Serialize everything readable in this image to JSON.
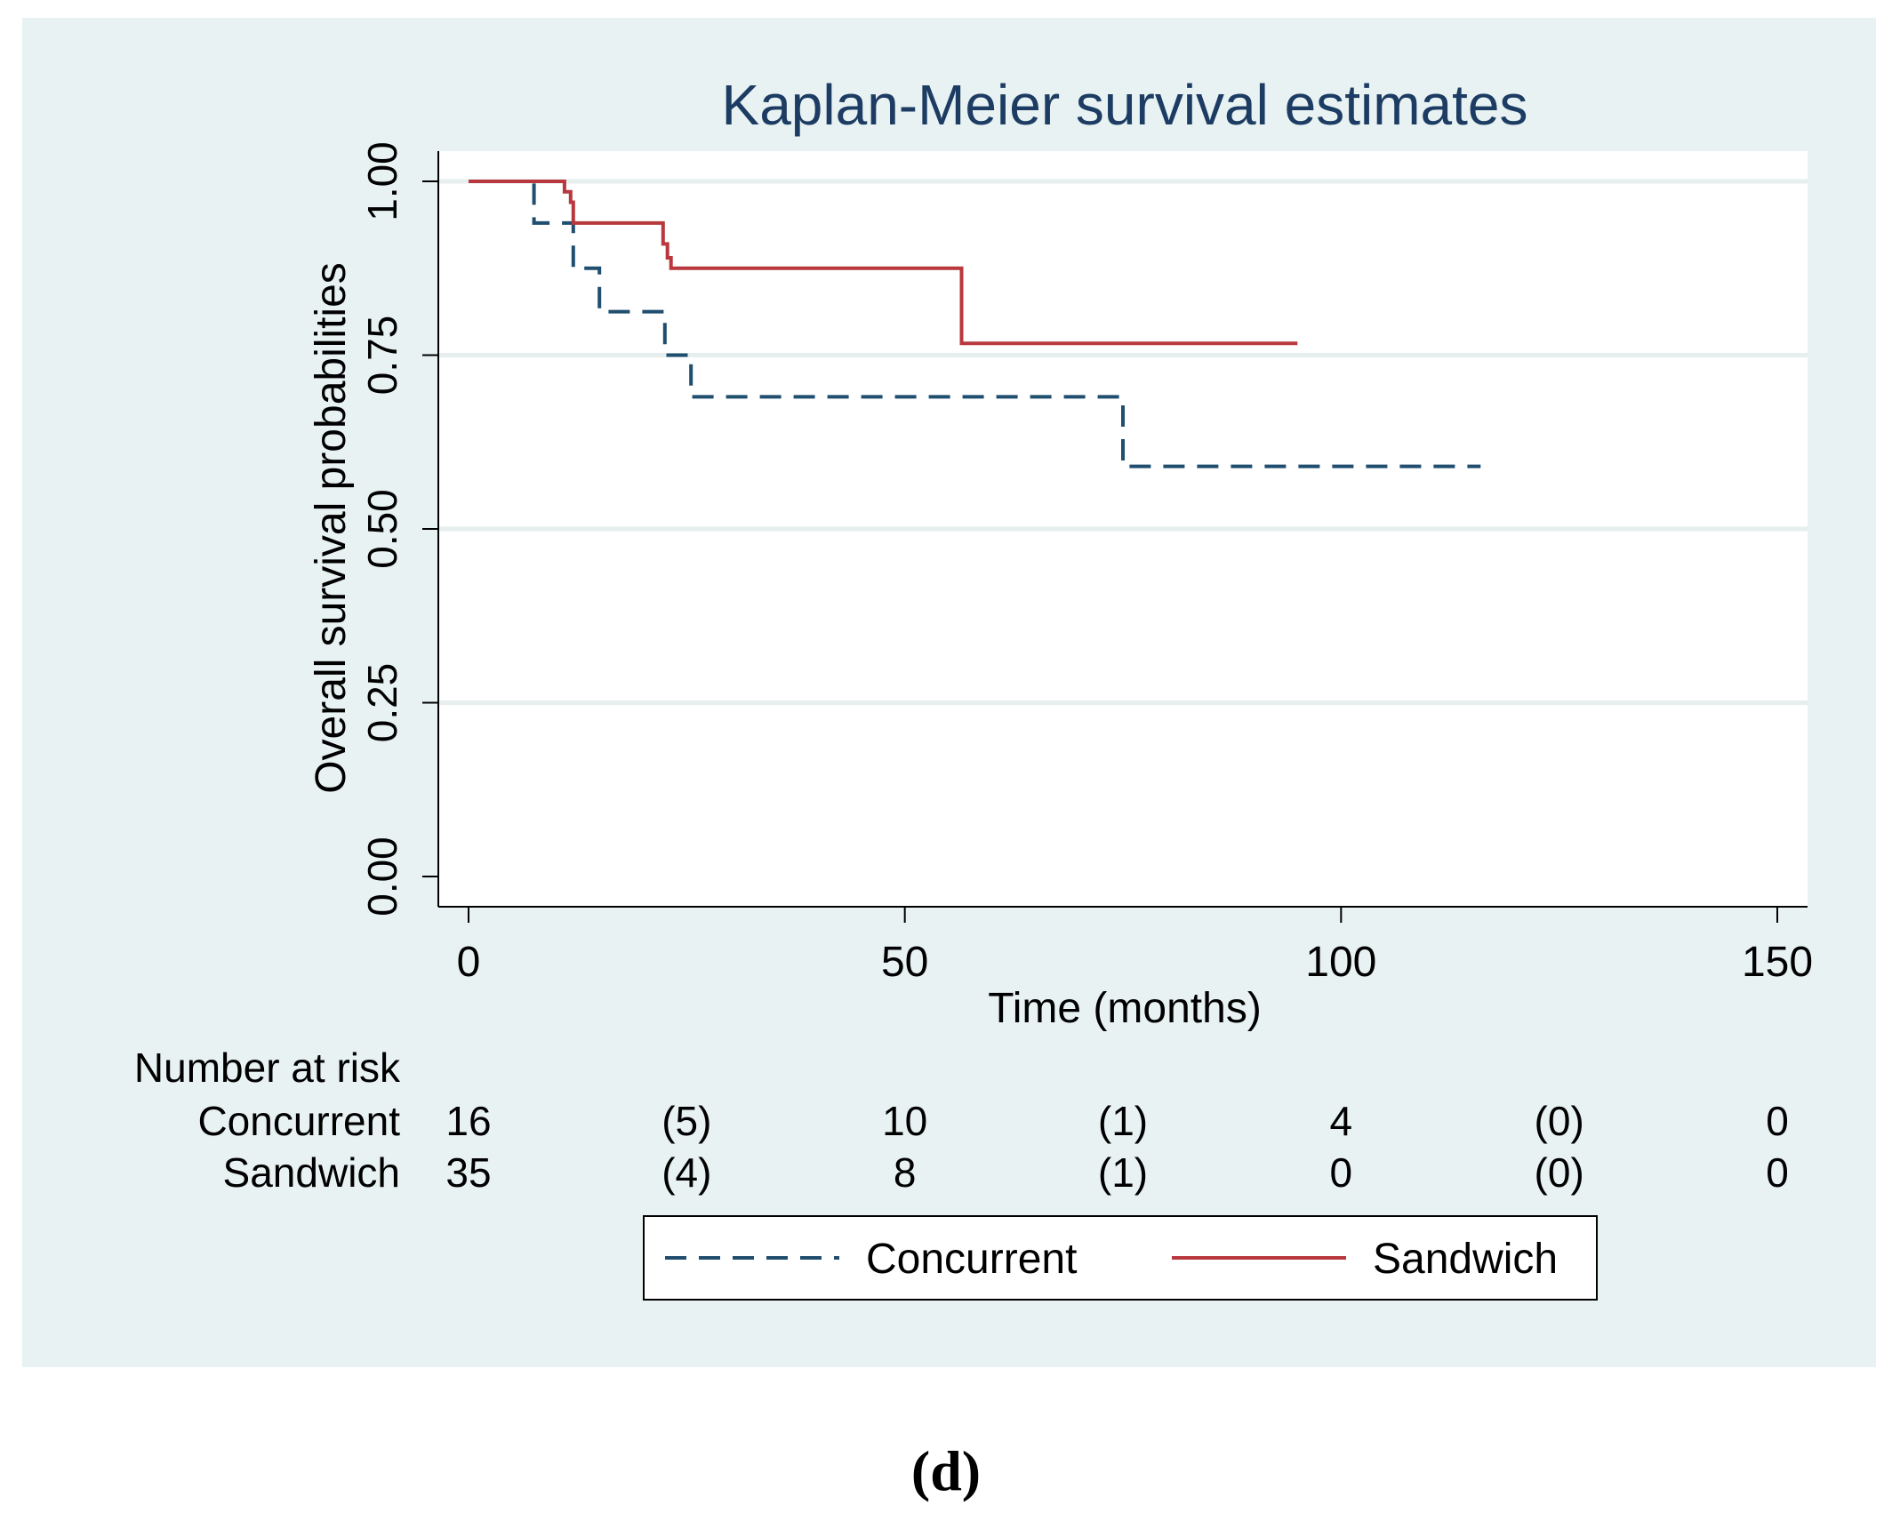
{
  "chart_data": {
    "type": "line",
    "subtype": "kaplan-meier",
    "title": "Kaplan-Meier survival estimates",
    "xlabel": "Time (months)",
    "ylabel": "Overall survival probabilities",
    "xlim": [
      0,
      150
    ],
    "ylim": [
      0,
      1
    ],
    "x_ticks": [
      0,
      50,
      100,
      150
    ],
    "y_ticks": [
      0,
      0.25,
      0.5,
      0.75,
      1
    ],
    "y_tick_labels": [
      "0.00",
      "0.25",
      "0.50",
      "0.75",
      "1.00"
    ],
    "grid": true,
    "background_color": "#e8f2f2",
    "plot_background_color": "#ffffff",
    "series": [
      {
        "name": "Concurrent",
        "style": "dashed",
        "color": "#1f4e6e",
        "x": [
          0,
          7.5,
          7.5,
          12,
          12,
          15,
          15,
          22.5,
          22.5,
          25.5,
          25.5,
          75,
          75,
          116
        ],
        "y": [
          1.0,
          1.0,
          0.94,
          0.94,
          0.875,
          0.875,
          0.8125,
          0.8125,
          0.75,
          0.75,
          0.69,
          0.69,
          0.59,
          0.59
        ]
      },
      {
        "name": "Sandwich",
        "style": "solid",
        "color": "#b8383d",
        "x": [
          0,
          11,
          11,
          11.7,
          11.7,
          12,
          12,
          22.3,
          22.3,
          22.8,
          22.8,
          23.2,
          23.2,
          56.5,
          56.5,
          95
        ],
        "y": [
          1.0,
          1.0,
          0.985,
          0.985,
          0.97,
          0.97,
          0.94,
          0.94,
          0.91,
          0.91,
          0.89,
          0.89,
          0.875,
          0.875,
          0.767,
          0.767
        ]
      }
    ],
    "risk_table": {
      "header": "Number at risk",
      "times": [
        0,
        25,
        50,
        75,
        100,
        125,
        150
      ],
      "rows": [
        {
          "label": "Concurrent",
          "values": [
            "16",
            "(5)",
            "10",
            "(1)",
            "4",
            "(0)",
            "0"
          ]
        },
        {
          "label": "Sandwich",
          "values": [
            "35",
            "(4)",
            "8",
            "(1)",
            "0",
            "(0)",
            "0"
          ]
        }
      ]
    },
    "legend": {
      "position": "bottom-center",
      "items": [
        "Concurrent",
        "Sandwich"
      ]
    }
  },
  "panel_label": "(d)"
}
